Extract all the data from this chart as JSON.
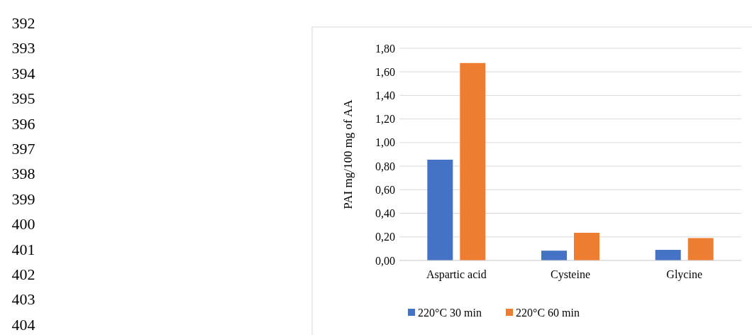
{
  "chart_data": {
    "type": "bar",
    "ylabel": "PAI mg/100 mg of AA",
    "categories": [
      "Aspartic acid",
      "Cysteine",
      "Glycine"
    ],
    "series": [
      {
        "name": "220°C 30 min",
        "color": "#4472c4",
        "values": [
          0.855,
          0.083,
          0.09
        ]
      },
      {
        "name": "220°C 60 min",
        "color": "#ed7d31",
        "values": [
          1.675,
          0.235,
          0.19
        ]
      }
    ],
    "ylim": [
      0,
      1.8
    ],
    "yticks": [
      {
        "value": 0,
        "label": "0,00"
      },
      {
        "value": 0.2,
        "label": "0,20"
      },
      {
        "value": 0.4,
        "label": "0,40"
      },
      {
        "value": 0.6,
        "label": "0,60"
      },
      {
        "value": 0.8,
        "label": "0,80"
      },
      {
        "value": 1,
        "label": "1,00"
      },
      {
        "value": 1.2,
        "label": "1,20"
      },
      {
        "value": 1.4,
        "label": "1,40"
      },
      {
        "value": 1.6,
        "label": "1,60"
      },
      {
        "value": 1.8,
        "label": "1,80"
      }
    ],
    "grid": "y",
    "legend": "bottom",
    "annotations": [
      "392",
      "393",
      "394",
      "395",
      "396",
      "397",
      "398",
      "399",
      "400",
      "401",
      "402",
      "403",
      "404"
    ]
  }
}
